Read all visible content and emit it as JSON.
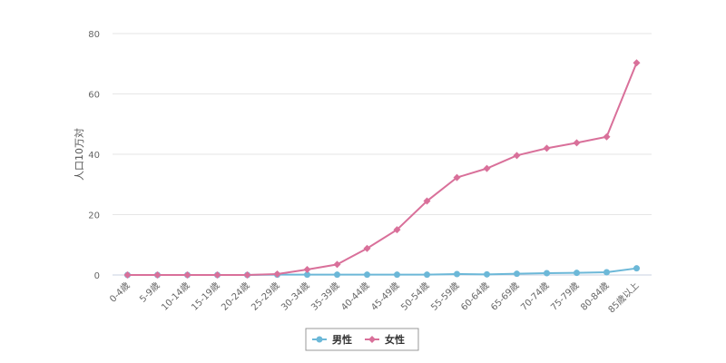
{
  "chart_data": {
    "type": "line",
    "categories": [
      "0-4歳",
      "5-9歳",
      "10-14歳",
      "15-19歳",
      "20-24歳",
      "25-29歳",
      "30-34歳",
      "35-39歳",
      "40-44歳",
      "45-49歳",
      "50-54歳",
      "55-59歳",
      "60-64歳",
      "65-69歳",
      "70-74歳",
      "75-79歳",
      "80-84歳",
      "85歳以上"
    ],
    "series": [
      {
        "name": "男性",
        "color": "#6cb8d8",
        "marker": "circle",
        "values": [
          0,
          0,
          0,
          0,
          0,
          0.1,
          0.1,
          0.1,
          0.1,
          0.1,
          0.1,
          0.3,
          0.2,
          0.4,
          0.6,
          0.7,
          0.9,
          2.2
        ]
      },
      {
        "name": "女性",
        "color": "#d9709a",
        "marker": "diamond",
        "values": [
          0,
          0,
          0,
          0,
          0,
          0.3,
          1.8,
          3.5,
          8.8,
          15,
          24.5,
          32.3,
          35.3,
          39.6,
          42,
          43.8,
          45.8,
          70.3
        ]
      }
    ],
    "xlabel": "",
    "ylabel": "人口10万対",
    "ylim": [
      0,
      80
    ],
    "yticks": [
      0,
      20,
      40,
      60,
      80
    ],
    "grid": true,
    "legend": "bottom-center"
  }
}
